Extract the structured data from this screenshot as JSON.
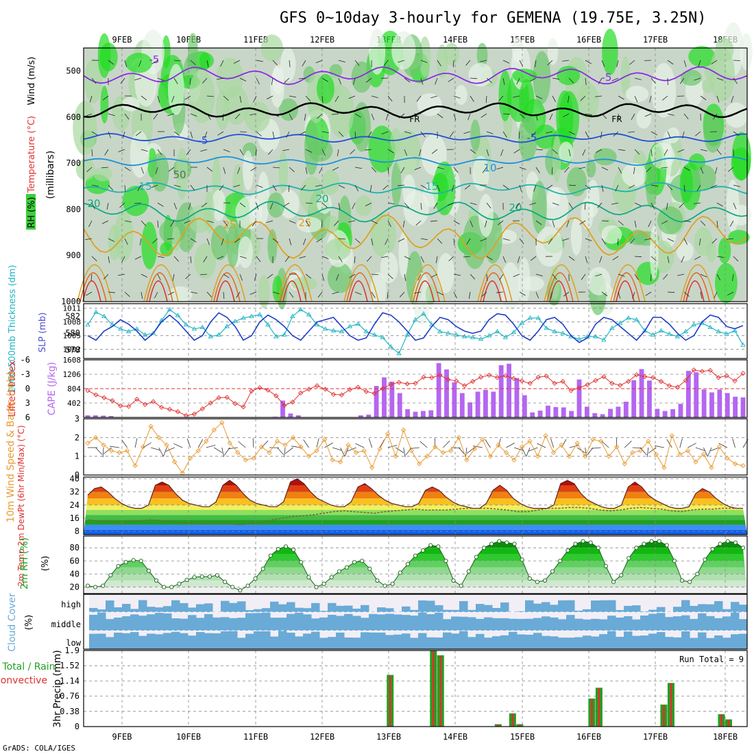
{
  "title": "GFS 0~10day 3-hourly for GEMENA (19.75E, 3.25N)",
  "credit": "GrADS: COLA/IGES",
  "dates": [
    "9FEB",
    "10FEB",
    "11FEB",
    "12FEB",
    "13FEB",
    "14FEB",
    "15FEB",
    "16FEB",
    "17FEB",
    "18FEB"
  ],
  "colors": {
    "cyan": "#22b5c4",
    "blue": "#1e3cc8",
    "red": "#e03030",
    "purple": "#b466f0",
    "orange": "#e89a30",
    "green": "#22a022",
    "cloud": "#6aaad6",
    "gray": "#d8d8d8"
  },
  "chart_data": [
    {
      "id": "upper",
      "type": "heatmap",
      "ylabel_parts": [
        "RH (%)",
        "Temperature (°C)",
        "Wind (m/s)"
      ],
      "yaxis_label": "(millibars)",
      "pressure_ticks": [
        500,
        600,
        700,
        800,
        900,
        1000
      ],
      "ylim": [
        450,
        1000
      ],
      "temperature_contours": [
        {
          "label": "-5",
          "color": "#8a2be2",
          "level": 510,
          "amp": 12
        },
        {
          "label": "FR",
          "color": "#000000",
          "level": 585,
          "amp": 10
        },
        {
          "label": "-5",
          "color": "#1e50d8",
          "level": 645,
          "amp": 6
        },
        {
          "label": "10",
          "color": "#1e90d8",
          "level": 695,
          "amp": 6
        },
        {
          "label": "15",
          "color": "#20b2aa",
          "level": 755,
          "amp": 8
        },
        {
          "label": "20",
          "color": "#10aa80",
          "level": 805,
          "amp": 14
        },
        {
          "label": "25",
          "color": "#e0a020",
          "level": 860,
          "amp": 30
        }
      ],
      "contour_labels": [
        "-5",
        "-5",
        "FR",
        "FR",
        "-5",
        "-5",
        "10",
        "15",
        "15",
        "20",
        "20",
        "20",
        "25",
        "25",
        "50"
      ]
    },
    {
      "id": "thickness_slp",
      "type": "line",
      "ylabel_left": "1000-500mb Thickness (dm)",
      "ylabel_right": "SLP (mb)",
      "left_ticks": [
        578,
        580,
        582
      ],
      "right_ticks": [
        1002,
        1005,
        1008,
        1011
      ],
      "ylim_left": [
        577,
        583.5
      ],
      "ylim_right": [
        1000,
        1012
      ],
      "series": [
        {
          "name": "thickness",
          "color": "#22b5c4",
          "values": [
            581,
            582.5,
            582,
            581,
            580.5,
            580.2,
            580.5,
            579.8,
            580,
            581.5,
            582.8,
            582.1,
            581,
            580.5,
            580.7,
            579.6,
            579.8,
            580.8,
            581.4,
            581.8,
            582,
            582.2,
            581,
            579.6,
            579.8,
            582,
            582.8,
            582.2,
            581,
            580.5,
            580.3,
            580.2,
            580.8,
            581.1,
            580.2,
            579.8,
            579.5,
            578.4,
            577.6,
            579.8,
            581.6,
            582.3,
            581,
            580.2,
            580,
            579.8,
            579.6,
            579.5,
            579.3,
            579.7,
            580.2,
            579.5,
            580.1,
            581.2,
            581.8,
            581.8,
            580.6,
            580.2,
            580,
            579.6,
            579.3,
            579.6,
            579.6,
            579.2,
            580.6,
            581.2,
            581.8,
            581.6,
            580.3,
            579.8,
            580.3,
            579.9,
            579.6,
            580.2,
            581,
            581.2,
            580.7,
            580.2,
            579.9,
            580.3,
            578.6
          ]
        },
        {
          "name": "SLP",
          "color": "#1e3cc8",
          "values": [
            1005,
            1004,
            1006,
            1007,
            1008.5,
            1007.5,
            1006,
            1004,
            1005.5,
            1008,
            1009.5,
            1008,
            1006,
            1004,
            1005,
            1008,
            1010,
            1009,
            1007,
            1004,
            1005,
            1008,
            1009.5,
            1008.5,
            1007,
            1005,
            1004,
            1006,
            1008,
            1008.5,
            1009,
            1007,
            1005,
            1004,
            1004.5,
            1007.5,
            1010,
            1009.5,
            1008,
            1006,
            1004,
            1004.5,
            1007,
            1009,
            1008.5,
            1007,
            1006,
            1005.5,
            1006,
            1008.5,
            1009.8,
            1009.5,
            1007.5,
            1005,
            1004,
            1006,
            1008.5,
            1009,
            1007.5,
            1005,
            1003.5,
            1004.5,
            1007.5,
            1009,
            1008.5,
            1007,
            1005.5,
            1004,
            1006,
            1009,
            1009,
            1007.5,
            1005.5,
            1004,
            1005,
            1008,
            1009.5,
            1009,
            1007,
            1006.5,
            1007.2
          ]
        }
      ]
    },
    {
      "id": "li_cape",
      "type": "bar",
      "ylabel_left": "Lifted Index",
      "ylabel_right": "CAPE (J/kg)",
      "li_ticks": [
        -6,
        -3,
        0,
        3,
        6
      ],
      "cape_ticks": [
        402,
        804,
        1206,
        1608
      ],
      "ylim_li": [
        6,
        -6
      ],
      "ylim_cape": [
        0,
        1608
      ],
      "series": [
        {
          "name": "Lifted Index",
          "color": "#e03030",
          "values": [
            0.4,
            1.3,
            1.9,
            2.5,
            3.6,
            3.7,
            2.2,
            3.3,
            2.7,
            3.9,
            4.3,
            4.8,
            5.6,
            5.3,
            4.2,
            3.0,
            1.9,
            1.8,
            3.1,
            3.8,
            0.5,
            -0.2,
            0.3,
            1.5,
            3.5,
            2.8,
            0.9,
            0.1,
            -0.6,
            0.1,
            1.2,
            1.3,
            0.2,
            -0.3,
            0.6,
            1.0,
            0.0,
            -0.9,
            -1.3,
            -1.0,
            -1.1,
            -2.4,
            -2.3,
            -2.8,
            -1.9,
            -1.6,
            -0.6,
            -1.5,
            -2.4,
            -2.8,
            -2.3,
            -2.7,
            -2.1,
            -1.6,
            -1.1,
            -2.4,
            -2.6,
            -1.1,
            -1.5,
            0.4,
            -0.2,
            -0.8,
            -1.7,
            -2.5,
            -1.1,
            -0.7,
            -1.5,
            -2.9,
            -2.5,
            -2.3,
            -1.5,
            -0.6,
            -0.3,
            -1.7,
            -3.9,
            -3.6,
            -3.8,
            -2.3,
            -2.7,
            -1.6,
            -3.2
          ]
        },
        {
          "name": "CAPE",
          "color": "#b466f0",
          "values": [
            60,
            60,
            50,
            40,
            0,
            0,
            0,
            0,
            0,
            0,
            0,
            0,
            0,
            0,
            0,
            0,
            0,
            0,
            0,
            0,
            0,
            0,
            10,
            10,
            20,
            470,
            110,
            60,
            0,
            0,
            0,
            0,
            0,
            0,
            0,
            60,
            80,
            880,
            1120,
            1000,
            680,
            230,
            160,
            180,
            200,
            1518,
            1340,
            980,
            680,
            420,
            720,
            770,
            720,
            1460,
            1500,
            1100,
            620,
            140,
            190,
            330,
            290,
            280,
            180,
            1060,
            300,
            120,
            90,
            240,
            300,
            440,
            1040,
            1350,
            1030,
            240,
            180,
            230,
            380,
            1300,
            1260,
            780,
            700,
            780,
            680,
            580,
            560
          ]
        }
      ]
    },
    {
      "id": "wind10m",
      "type": "line",
      "ylabel": "10m Wind Speed & Barbs (m/s)",
      "ticks": [
        0,
        1,
        2,
        3
      ],
      "ylim": [
        0,
        3
      ],
      "series": [
        {
          "name": "speed",
          "color": "#e89a30",
          "values": [
            1.7,
            2.0,
            1.6,
            1.3,
            1.2,
            1.3,
            0.5,
            1.5,
            2.6,
            2.0,
            1.6,
            0.7,
            0.1,
            0.9,
            1.3,
            1.8,
            2.4,
            2.8,
            1.7,
            1.2,
            0.8,
            0.9,
            1.5,
            1.2,
            1.8,
            1.6,
            2.0,
            1.5,
            1.0,
            1.3,
            1.9,
            0.8,
            0.7,
            1.6,
            1.2,
            1.3,
            0.4,
            1.4,
            2.2,
            1.0,
            2.4,
            1.3,
            0.6,
            1.0,
            1.5,
            1.2,
            1.3,
            2.0,
            0.8,
            1.4,
            1.9,
            1.0,
            1.6,
            1.2,
            0.8,
            1.5,
            1.8,
            1.0,
            2.1,
            1.2,
            1.6,
            1.0,
            1.7,
            1.0,
            1.9,
            1.8,
            1.0,
            1.5,
            0.6,
            1.2,
            1.3,
            1.8,
            1.1,
            0.4,
            2.1,
            1.1,
            1.3,
            0.7,
            1.1,
            0.4,
            1.5,
            0.9,
            0.6,
            0.5
          ]
        }
      ]
    },
    {
      "id": "temp2m",
      "type": "area",
      "ylabel": "2m Temp 2m DewPt (6hr Min/Max) (°C)",
      "ticks": [
        8,
        16,
        24,
        32,
        40
      ],
      "ylim": [
        6,
        41
      ],
      "series": [
        {
          "name": "2m Temp",
          "color": "#602020",
          "values": [
            30,
            34,
            35,
            32,
            28,
            25,
            23,
            22,
            22,
            24,
            36,
            38,
            36,
            31,
            27,
            25,
            24,
            23,
            23,
            26,
            36,
            39,
            36,
            31,
            27,
            25,
            24,
            23,
            23,
            26,
            38,
            40,
            37,
            32,
            28,
            26,
            24,
            23,
            23,
            26,
            35,
            37,
            34,
            30,
            27,
            25,
            24,
            23,
            23,
            25,
            33,
            35,
            33,
            29,
            26,
            24,
            23,
            22,
            22,
            25,
            33,
            36,
            33,
            28,
            25,
            23,
            22,
            22,
            22,
            24,
            37,
            39,
            37,
            31,
            27,
            25,
            23,
            22,
            22,
            24,
            35,
            38,
            35,
            30,
            27,
            25,
            23,
            22,
            22,
            23,
            31,
            34,
            32,
            28,
            25,
            23,
            22,
            22
          ]
        },
        {
          "name": "2m DewPt",
          "color": "#806040",
          "values": [
            15,
            14.5,
            14,
            13.5,
            14,
            14.5,
            15,
            14.8,
            14,
            13.5,
            13,
            12.5,
            12.5,
            13,
            12.5,
            12,
            12.8,
            13.5,
            15,
            16,
            17,
            17.5,
            18,
            19,
            20,
            20.5,
            20,
            19.5,
            19,
            20,
            20.5,
            21,
            21.5,
            21,
            21,
            21,
            21.5,
            22,
            22,
            22,
            21.5,
            21,
            20,
            20,
            21,
            22,
            22,
            22.5,
            22.5,
            22,
            21,
            20.5,
            21,
            22,
            22.5,
            22,
            21.5,
            20.5,
            20,
            21,
            21.5,
            21.5,
            22,
            22,
            22
          ]
        }
      ]
    },
    {
      "id": "rh2m",
      "type": "area",
      "ylabel": "2m RH (%)",
      "ticks": [
        20,
        40,
        60,
        80
      ],
      "ylim": [
        10,
        98
      ],
      "series": [
        {
          "name": "RH",
          "color": "#22a022",
          "values": [
            22,
            20,
            22,
            38,
            52,
            58,
            61,
            60,
            45,
            30,
            20,
            20,
            25,
            31,
            35,
            36,
            36,
            38,
            28,
            20,
            15,
            22,
            33,
            48,
            68,
            78,
            82,
            77,
            58,
            35,
            20,
            25,
            35,
            44,
            50,
            58,
            60,
            48,
            30,
            22,
            25,
            42,
            55,
            68,
            76,
            84,
            82,
            60,
            30,
            22,
            44,
            66,
            80,
            86,
            90,
            88,
            86,
            62,
            33,
            28,
            30,
            44,
            60,
            76,
            86,
            90,
            88,
            80,
            52,
            28,
            38,
            64,
            80,
            86,
            90,
            90,
            84,
            60,
            30,
            28,
            40,
            62,
            78,
            86,
            90,
            88,
            80
          ]
        }
      ]
    },
    {
      "id": "cloud",
      "type": "bar",
      "ylabel": "Cloud Cover (%)",
      "levels": [
        "high",
        "middle",
        "low"
      ]
    },
    {
      "id": "precip",
      "type": "bar",
      "ylabel": "3hr Precip (mm)",
      "ylabel_legend": [
        "Total / Rain",
        "Convective"
      ],
      "ticks": [
        0,
        0.38,
        0.76,
        1.14,
        1.52,
        1.9
      ],
      "ylim": [
        0,
        1.9
      ],
      "run_total": "Run Total = 9",
      "series": [
        {
          "name": "Total",
          "color": "#22a022",
          "values": [
            0,
            0,
            0,
            0,
            0,
            0,
            0,
            0,
            0,
            0,
            0,
            0,
            0,
            0,
            0,
            0,
            0,
            0,
            0,
            0,
            0,
            0,
            0,
            0,
            0,
            0,
            0,
            0,
            0,
            0,
            0,
            0,
            0,
            0,
            0,
            0,
            0,
            0,
            0,
            0,
            0,
            0,
            1.29,
            0,
            0,
            0,
            0,
            0,
            1.9,
            1.78,
            0,
            0,
            0,
            0,
            0,
            0,
            0,
            0.06,
            0,
            0.33,
            0.06,
            0,
            0,
            0,
            0,
            0,
            0,
            0,
            0,
            0,
            0.7,
            0.97,
            0,
            0,
            0,
            0,
            0,
            0,
            0,
            0,
            0.55,
            1.09,
            0,
            0,
            0,
            0,
            0,
            0,
            0.31,
            0.18,
            0,
            0
          ]
        },
        {
          "name": "Convective",
          "color": "#e03030",
          "values": [
            0,
            0,
            0,
            0,
            0,
            0,
            0,
            0,
            0,
            0,
            0,
            0,
            0,
            0,
            0,
            0,
            0,
            0,
            0,
            0,
            0,
            0,
            0,
            0,
            0,
            0,
            0,
            0,
            0,
            0,
            0,
            0,
            0,
            0,
            0,
            0,
            0,
            0,
            0,
            0,
            0,
            0,
            1.27,
            0,
            0,
            0,
            0,
            0,
            1.88,
            1.76,
            0,
            0,
            0,
            0,
            0,
            0,
            0,
            0.05,
            0,
            0.32,
            0.05,
            0,
            0,
            0,
            0,
            0,
            0,
            0,
            0,
            0,
            0.68,
            0.96,
            0,
            0,
            0,
            0,
            0,
            0,
            0,
            0,
            0.53,
            1.08,
            0,
            0,
            0,
            0,
            0,
            0,
            0.3,
            0.17,
            0,
            0
          ]
        }
      ]
    }
  ]
}
